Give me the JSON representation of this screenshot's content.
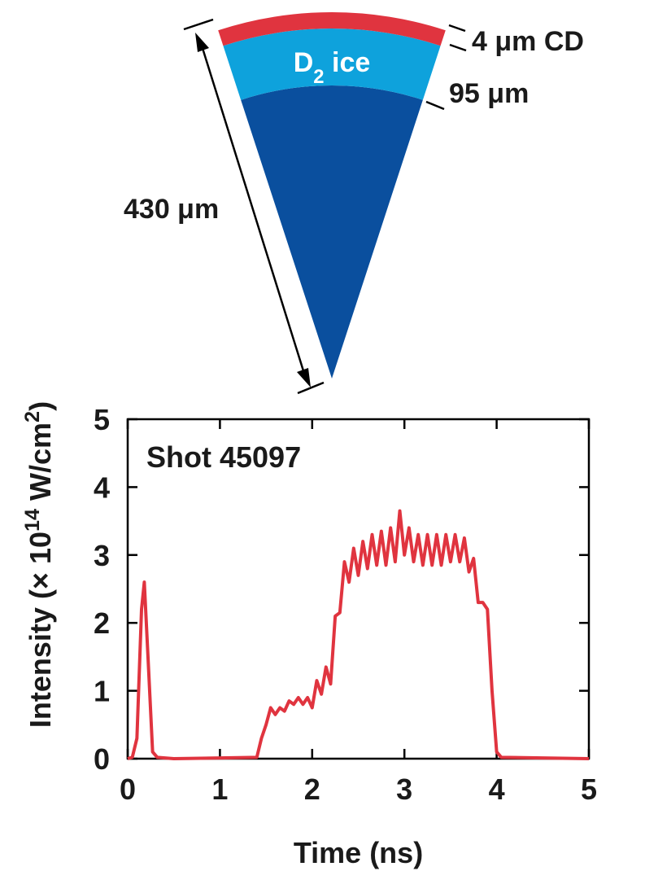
{
  "diagram": {
    "ice_label": [
      {
        "text": "D"
      },
      {
        "text": "2",
        "sub": true
      },
      {
        "text": " ice"
      }
    ],
    "cd_label": "4 μm CD",
    "ice_thickness": "95 μm",
    "radius_label": "430 μm"
  },
  "chart_data": {
    "type": "line",
    "annotation": "Shot 45097",
    "xlabel": "Time (ns)",
    "ylabel": [
      {
        "text": "Intensity (× 10"
      },
      {
        "text": "14",
        "sup": true
      },
      {
        "text": " W/cm"
      },
      {
        "text": "2",
        "sup": true
      },
      {
        "text": ")"
      }
    ],
    "color": "#e0343f",
    "xlim": [
      0,
      5
    ],
    "xticks": [
      0,
      1,
      2,
      3,
      4,
      5
    ],
    "ylim": [
      0,
      5
    ],
    "yticks": [
      0,
      1,
      2,
      3,
      4,
      5
    ],
    "x": [
      0,
      0.05,
      0.1,
      0.15,
      0.18,
      0.22,
      0.27,
      0.32,
      0.5,
      1.0,
      1.4,
      1.45,
      1.5,
      1.55,
      1.6,
      1.65,
      1.7,
      1.75,
      1.8,
      1.85,
      1.9,
      1.95,
      2.0,
      2.05,
      2.1,
      2.15,
      2.2,
      2.25,
      2.3,
      2.35,
      2.4,
      2.45,
      2.5,
      2.55,
      2.6,
      2.65,
      2.7,
      2.75,
      2.8,
      2.85,
      2.9,
      2.95,
      3.0,
      3.05,
      3.1,
      3.15,
      3.2,
      3.25,
      3.3,
      3.35,
      3.4,
      3.45,
      3.5,
      3.55,
      3.6,
      3.65,
      3.7,
      3.75,
      3.8,
      3.85,
      3.9,
      3.95,
      4.0,
      4.05,
      4.5,
      5.0
    ],
    "values": [
      0,
      0.02,
      0.3,
      2.2,
      2.6,
      1.5,
      0.1,
      0.02,
      0,
      0.01,
      0.02,
      0.3,
      0.5,
      0.75,
      0.65,
      0.75,
      0.7,
      0.85,
      0.8,
      0.9,
      0.8,
      0.9,
      0.75,
      1.15,
      0.95,
      1.35,
      1.1,
      2.1,
      2.15,
      2.9,
      2.6,
      3.1,
      2.7,
      3.2,
      2.8,
      3.3,
      2.85,
      3.35,
      2.85,
      3.4,
      2.9,
      3.65,
      3.0,
      3.4,
      2.9,
      3.3,
      2.85,
      3.3,
      2.85,
      3.3,
      2.85,
      3.3,
      2.9,
      3.3,
      2.9,
      3.25,
      2.75,
      2.95,
      2.3,
      2.3,
      2.2,
      1.0,
      0.1,
      0.02,
      0.01,
      0
    ]
  }
}
